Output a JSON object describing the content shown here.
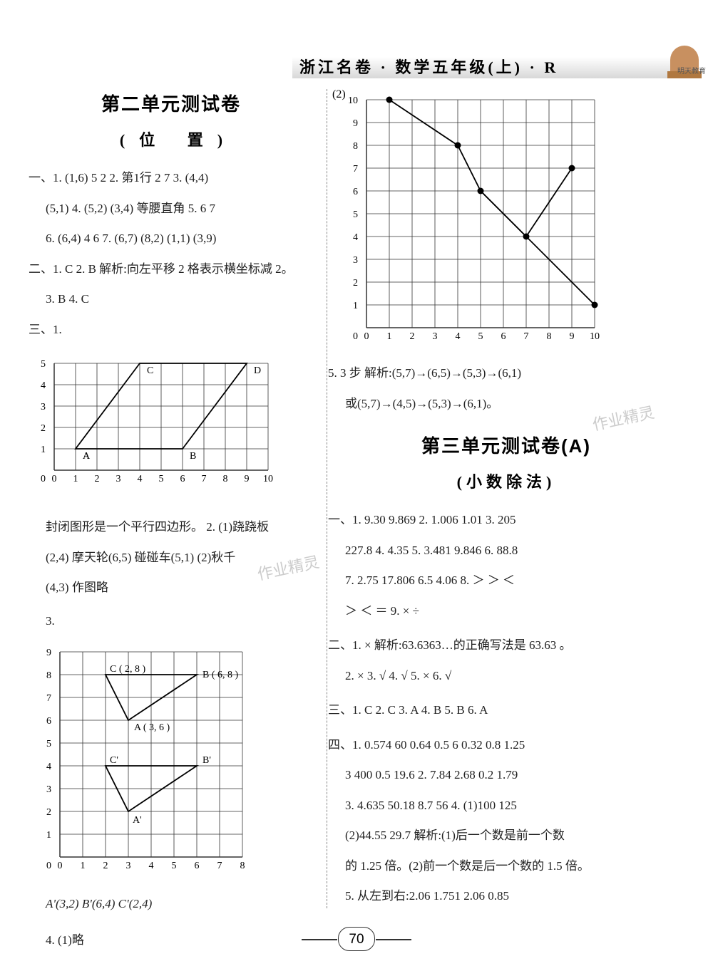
{
  "header": {
    "banner": "浙江名卷 · 数学五年级(上) · R",
    "emblem": "明天教育"
  },
  "page_number": "70",
  "left": {
    "title": "第二单元测试卷",
    "subtitle": "(位  置)",
    "sec1_lines": [
      "一、1. (1,6)  5  2  2. 第1行  2  7  3. (4,4)",
      "(5,1)  4. (5,2)  (3,4)  等腰直角  5. 6  7",
      "6. (6,4)  4  6  7. (6,7)  (8,2)  (1,1)  (3,9)"
    ],
    "sec2_lines": [
      "二、1. C  2. B  解析:向左平移 2 格表示横坐标减 2。",
      "3. B  4. C"
    ],
    "sec3_intro": "三、1.",
    "chart1": {
      "xmax": 10,
      "ymax": 5,
      "points": {
        "A": [
          1,
          1
        ],
        "B": [
          6,
          1
        ],
        "C": [
          4,
          5
        ],
        "D": [
          9,
          5
        ]
      },
      "edges": [
        [
          "A",
          "B"
        ],
        [
          "B",
          "D"
        ],
        [
          "D",
          "C"
        ],
        [
          "C",
          "A"
        ]
      ],
      "grid_color": "#333",
      "bg": "#fff"
    },
    "sec3_lines": [
      "封闭图形是一个平行四边形。  2. (1)跷跷板",
      "(2,4)  摩天轮(6,5)  碰碰车(5,1)  (2)秋千",
      "(4,3)  作图略"
    ],
    "sec3_item3": "3.",
    "chart2": {
      "xmax": 8,
      "ymax": 9,
      "points": {
        "A": [
          3,
          6,
          "A ( 3, 6 )"
        ],
        "B": [
          6,
          8,
          "B ( 6, 8 )"
        ],
        "C": [
          2,
          8,
          "C ( 2, 8 )"
        ],
        "Ap": [
          3,
          2,
          "A'"
        ],
        "Bp": [
          6,
          4,
          "B'"
        ],
        "Cp": [
          2,
          4,
          "C'"
        ]
      },
      "tri1": [
        "A",
        "B",
        "C"
      ],
      "tri2": [
        "Ap",
        "Bp",
        "Cp"
      ],
      "grid_color": "#333",
      "bg": "#fff"
    },
    "sec3_coords": "A'(3,2)  B'(6,4)  C'(2,4)",
    "sec4": "4. (1)略"
  },
  "right": {
    "chart_label": "(2)",
    "chart3": {
      "xmax": 10,
      "ymax": 10,
      "pts": [
        [
          1,
          10
        ],
        [
          4,
          8
        ],
        [
          5,
          6
        ],
        [
          10,
          1
        ],
        [
          7,
          4
        ],
        [
          9,
          7
        ]
      ],
      "path1": [
        [
          1,
          10
        ],
        [
          4,
          8
        ],
        [
          5,
          6
        ],
        [
          10,
          1
        ]
      ],
      "path2": [
        [
          5,
          6
        ],
        [
          7,
          4
        ],
        [
          9,
          7
        ]
      ],
      "grid_color": "#333"
    },
    "step_line1": "5. 3 步  解析:(5,7)→(6,5)→(5,3)→(6,1)",
    "step_line2": "或(5,7)→(4,5)→(5,3)→(6,1)。",
    "title2": "第三单元测试卷(A)",
    "subtitle2": "(小数除法)",
    "u3_sec1": [
      "一、1. 9.30  9.869  2. 1.006  1.01  3. 205",
      "227.8  4. 4.35  5. 3.481  9.846  6. 88.8",
      "7. 2.75  17.806  6.5  4.06  8. ＞  ＞  ＜",
      "＞  ＜  ＝  9. ×  ÷"
    ],
    "u3_sec2": [
      "二、1. ×  解析:63.6363…的正确写法是 63.63 。",
      "2. ×  3. √  4. √  5. ×  6. √"
    ],
    "u3_sec3": "三、1. C  2. C  3. A  4. B  5. B  6. A",
    "u3_sec4": [
      "四、1. 0.574  60  0.64  0.5  6  0.32  0.8  1.25",
      "3  400  0.5  19.6  2. 7.84  2.68  0.2  1.79",
      "3. 4.635  50.18  8.7  56  4. (1)100  125",
      "(2)44.55  29.7  解析:(1)后一个数是前一个数",
      "的 1.25 倍。(2)前一个数是后一个数的 1.5 倍。",
      "5. 从左到右:2.06  1.751  2.06  0.85"
    ]
  }
}
